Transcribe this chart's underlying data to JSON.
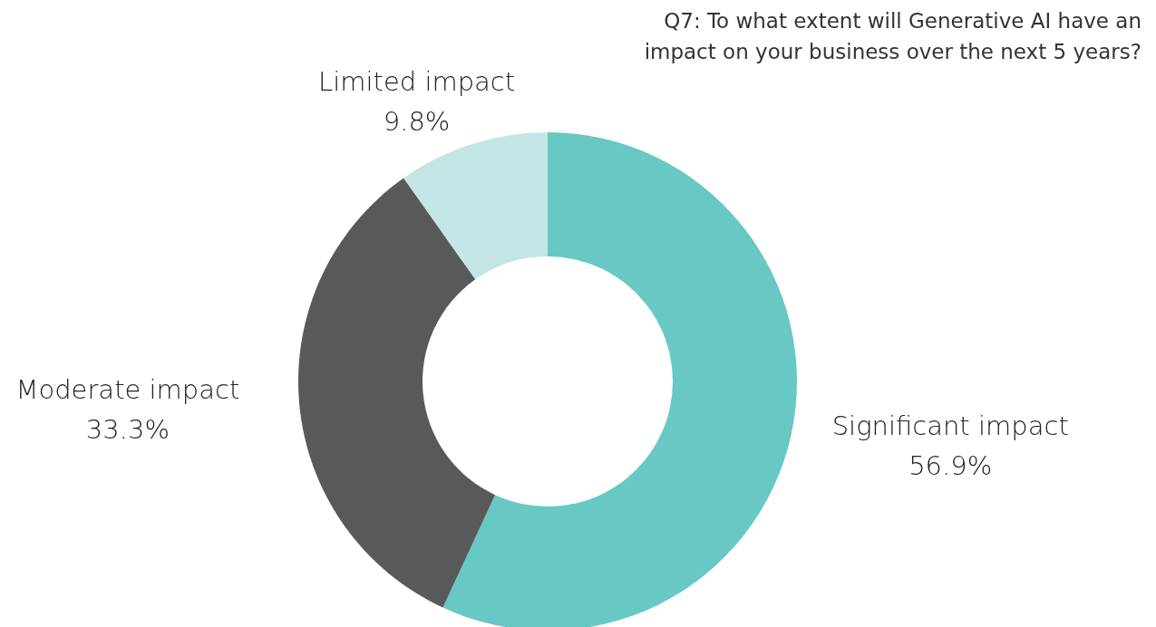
{
  "chart_data": {
    "type": "donut",
    "title": "Q7: To what extent will Generative AI have an impact on your business over the next 5 years?",
    "categories": [
      "Significant impact",
      "Moderate impact",
      "Limited impact"
    ],
    "values": [
      56.9,
      33.3,
      9.8
    ],
    "value_labels": [
      "56.9%",
      "33.3%",
      "9.8%"
    ],
    "colors": [
      "#68c8c4",
      "#58595b",
      "#c3e6e4"
    ]
  }
}
